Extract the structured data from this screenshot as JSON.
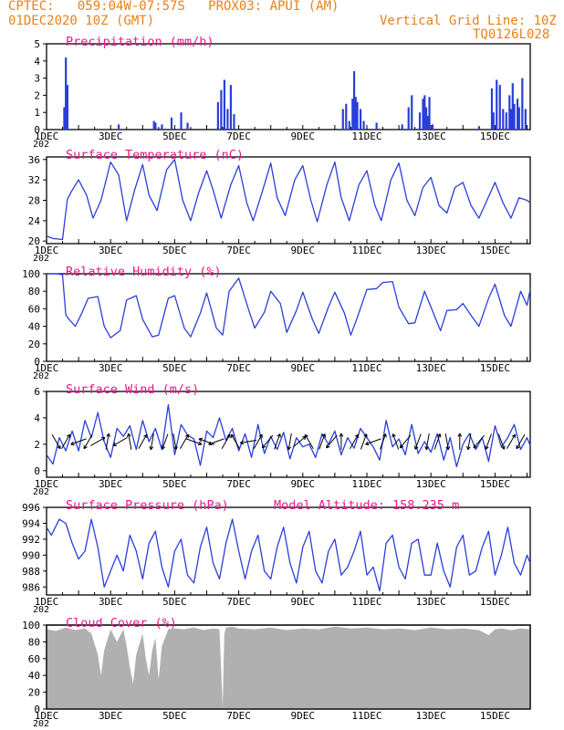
{
  "header": {
    "line1_left": "CPTEC:   059:04W-07:57S   PROX03: APUI (AM)",
    "line2_left": "01DEC2020 10Z (GMT)",
    "line2_right": "Vertical Grid Line: 10Z",
    "line3_right": "TQ0126L028"
  },
  "colors": {
    "header": "#e8801a",
    "title": "#e8188a",
    "series": "#2a3fd8",
    "cloud": "#b0b0b0",
    "axis": "#000000"
  },
  "x_axis": {
    "start_day": 1,
    "end_day": 16.1,
    "tick_labels": [
      "1DEC",
      "3DEC",
      "5DEC",
      "7DEC",
      "9DEC",
      "11DEC",
      "13DEC",
      "15DEC"
    ],
    "tick_days": [
      1,
      3,
      5,
      7,
      9,
      11,
      13,
      15
    ],
    "year_label": "202"
  },
  "chart_data": [
    {
      "type": "bar",
      "title": "Precipitation (mm/h)",
      "ylim": [
        0,
        5
      ],
      "yticks": [
        "0",
        "1",
        "2",
        "3",
        "4",
        "5"
      ],
      "x": [
        1.55,
        1.6,
        1.65,
        3.25,
        4.35,
        4.4,
        4.6,
        4.9,
        5.2,
        5.4,
        6.35,
        6.45,
        6.55,
        6.65,
        6.75,
        6.85,
        10.25,
        10.35,
        10.45,
        10.55,
        10.6,
        10.65,
        10.7,
        10.8,
        10.9,
        11.3,
        12.1,
        12.3,
        12.4,
        12.65,
        12.75,
        12.8,
        12.85,
        12.9,
        12.95,
        13.05,
        14.5,
        14.9,
        14.95,
        15.05,
        15.15,
        15.25,
        15.35,
        15.45,
        15.5,
        15.55,
        15.6,
        15.7,
        15.75,
        15.85,
        15.95
      ],
      "values": [
        1.3,
        4.2,
        2.6,
        0.3,
        0.5,
        0.4,
        0.3,
        0.7,
        1.0,
        0.4,
        1.6,
        2.3,
        2.9,
        1.2,
        2.6,
        0.9,
        1.2,
        1.5,
        0.5,
        1.8,
        3.4,
        1.9,
        1.6,
        1.2,
        0.5,
        0.4,
        0.3,
        1.3,
        2.0,
        1.0,
        1.8,
        2.0,
        1.3,
        0.8,
        1.9,
        0.3,
        0.2,
        2.4,
        1.0,
        2.9,
        2.6,
        1.2,
        1.0,
        2.0,
        1.2,
        2.7,
        1.5,
        1.8,
        1.3,
        3.0,
        1.2
      ]
    },
    {
      "type": "line",
      "title": "Surface Temperature (nC)",
      "ylim": [
        19.5,
        36.5
      ],
      "yticks": [
        "20",
        "24",
        "28",
        "32",
        "36"
      ],
      "x": [
        1.0,
        1.2,
        1.5,
        1.65,
        1.8,
        2.0,
        2.25,
        2.45,
        2.7,
        3.0,
        3.25,
        3.5,
        3.75,
        4.0,
        4.2,
        4.45,
        4.75,
        5.0,
        5.25,
        5.5,
        5.75,
        6.0,
        6.2,
        6.45,
        6.75,
        7.0,
        7.25,
        7.45,
        7.75,
        8.0,
        8.2,
        8.45,
        8.75,
        9.0,
        9.25,
        9.45,
        9.75,
        10.0,
        10.2,
        10.45,
        10.75,
        11.0,
        11.25,
        11.45,
        11.75,
        12.0,
        12.25,
        12.5,
        12.75,
        13.0,
        13.25,
        13.5,
        13.75,
        14.0,
        14.25,
        14.5,
        14.75,
        15.0,
        15.25,
        15.5,
        15.75,
        16.0,
        16.1
      ],
      "values": [
        21,
        20.5,
        20.3,
        28.2,
        30,
        32,
        29,
        24.5,
        28,
        35.5,
        33,
        24,
        30,
        35,
        29,
        26,
        34,
        36,
        28,
        24,
        29.5,
        33.8,
        30,
        24.5,
        31,
        34.8,
        27.5,
        24,
        30,
        35.3,
        28.5,
        25,
        32,
        34.8,
        28,
        23.8,
        31,
        35.5,
        28.5,
        24,
        31,
        33.8,
        27,
        24,
        32,
        35.3,
        28,
        25,
        30.5,
        32.5,
        27,
        25.5,
        30.5,
        31.5,
        27,
        24.5,
        28,
        31.5,
        27.5,
        24.5,
        28.5,
        28,
        27.5
      ]
    },
    {
      "type": "line",
      "title": "Relative Humidity (%)",
      "ylim": [
        0,
        100
      ],
      "yticks": [
        "0",
        "20",
        "40",
        "60",
        "80",
        "100"
      ],
      "x": [
        1.0,
        1.3,
        1.5,
        1.6,
        1.7,
        1.9,
        2.1,
        2.3,
        2.6,
        2.8,
        3.0,
        3.3,
        3.5,
        3.8,
        4.0,
        4.3,
        4.5,
        4.8,
        5.0,
        5.3,
        5.5,
        5.8,
        6.0,
        6.3,
        6.5,
        6.7,
        7.0,
        7.3,
        7.5,
        7.8,
        8.0,
        8.3,
        8.5,
        8.8,
        9.0,
        9.3,
        9.5,
        9.8,
        10.0,
        10.3,
        10.5,
        10.7,
        11.0,
        11.3,
        11.5,
        11.8,
        12.0,
        12.3,
        12.5,
        12.8,
        13.0,
        13.3,
        13.5,
        13.8,
        14.0,
        14.3,
        14.5,
        14.8,
        15.0,
        15.3,
        15.5,
        15.8,
        16.0,
        16.1
      ],
      "values": [
        100,
        100,
        99,
        53,
        48,
        40,
        55,
        72,
        74,
        40,
        27,
        35,
        70,
        75,
        48,
        28,
        30,
        72,
        75,
        38,
        28,
        55,
        78,
        38,
        30,
        80,
        95,
        60,
        38,
        56,
        80,
        66,
        33,
        58,
        79,
        48,
        32,
        62,
        79,
        55,
        30,
        50,
        82,
        83,
        90,
        91,
        62,
        43,
        44,
        80,
        62,
        35,
        58,
        59,
        66,
        50,
        40,
        72,
        88,
        52,
        40,
        80,
        64,
        82
      ]
    },
    {
      "type": "line",
      "title": "Surface Wind (m/s)",
      "ylim": [
        -0.5,
        6
      ],
      "yticks": [
        "0",
        "2",
        "4",
        "6"
      ],
      "x": [
        1.0,
        1.2,
        1.4,
        1.6,
        1.8,
        2.0,
        2.2,
        2.4,
        2.6,
        2.8,
        3.0,
        3.2,
        3.4,
        3.6,
        3.8,
        4.0,
        4.2,
        4.4,
        4.6,
        4.8,
        5.0,
        5.2,
        5.4,
        5.6,
        5.8,
        6.0,
        6.2,
        6.4,
        6.6,
        6.8,
        7.0,
        7.2,
        7.4,
        7.6,
        7.8,
        8.0,
        8.2,
        8.4,
        8.6,
        8.8,
        9.0,
        9.2,
        9.4,
        9.6,
        9.8,
        10.0,
        10.2,
        10.4,
        10.6,
        10.8,
        11.0,
        11.2,
        11.4,
        11.6,
        11.8,
        12.0,
        12.2,
        12.4,
        12.6,
        12.8,
        13.0,
        13.2,
        13.4,
        13.6,
        13.8,
        14.0,
        14.2,
        14.4,
        14.6,
        14.8,
        15.0,
        15.2,
        15.4,
        15.6,
        15.8,
        16.0,
        16.1
      ],
      "values": [
        1.2,
        0.5,
        2.5,
        1.5,
        3.0,
        1.5,
        3.8,
        2.5,
        4.4,
        2.2,
        1.0,
        3.2,
        2.6,
        3.4,
        1.6,
        3.8,
        2.2,
        3.2,
        1.6,
        5.0,
        1.2,
        3.5,
        2.7,
        2.4,
        0.4,
        3.0,
        2.5,
        4.0,
        2.3,
        3.2,
        1.5,
        2.8,
        1.0,
        3.5,
        1.3,
        2.6,
        1.6,
        2.9,
        0.9,
        2.5,
        1.8,
        2.0,
        1.0,
        2.8,
        2.0,
        3.0,
        1.2,
        2.5,
        1.7,
        3.2,
        2.5,
        1.8,
        0.8,
        3.8,
        1.8,
        2.4,
        1.2,
        3.5,
        1.3,
        2.2,
        1.4,
        2.8,
        0.8,
        2.5,
        0.3,
        2.0,
        2.8,
        1.6,
        2.5,
        0.7,
        3.4,
        1.8,
        2.5,
        3.5,
        1.6,
        2.5,
        1.9
      ]
    },
    {
      "type": "line",
      "title": "Surface Pressure (hPa)",
      "subtitle": "Model Altitude: 158.235 m",
      "ylim": [
        985,
        996
      ],
      "yticks": [
        "986",
        "988",
        "990",
        "992",
        "994",
        "996"
      ],
      "x": [
        1.0,
        1.15,
        1.4,
        1.6,
        1.8,
        2.0,
        2.2,
        2.4,
        2.6,
        2.8,
        3.0,
        3.2,
        3.4,
        3.6,
        3.8,
        4.0,
        4.2,
        4.4,
        4.6,
        4.8,
        5.0,
        5.2,
        5.4,
        5.6,
        5.8,
        6.0,
        6.2,
        6.4,
        6.6,
        6.8,
        7.0,
        7.2,
        7.4,
        7.6,
        7.8,
        8.0,
        8.2,
        8.4,
        8.6,
        8.8,
        9.0,
        9.2,
        9.4,
        9.6,
        9.8,
        10.0,
        10.2,
        10.4,
        10.6,
        10.8,
        11.0,
        11.2,
        11.4,
        11.6,
        11.8,
        12.0,
        12.2,
        12.4,
        12.6,
        12.8,
        13.0,
        13.2,
        13.4,
        13.6,
        13.8,
        14.0,
        14.2,
        14.4,
        14.6,
        14.8,
        15.0,
        15.2,
        15.4,
        15.6,
        15.8,
        16.0,
        16.1
      ],
      "values": [
        993.5,
        992.5,
        994.5,
        994.0,
        991.5,
        989.5,
        990.5,
        994.5,
        991.0,
        986.0,
        988.0,
        990.0,
        988.0,
        992.5,
        990.5,
        987.0,
        991.5,
        993.0,
        988.5,
        986.0,
        990.5,
        992.0,
        987.5,
        986.5,
        991.0,
        993.5,
        989.0,
        987.0,
        991.5,
        994.5,
        990.5,
        987.0,
        990.5,
        992.5,
        988.0,
        987.0,
        991.0,
        993.5,
        989.0,
        986.5,
        991.0,
        993.0,
        988.0,
        986.5,
        990.5,
        992.0,
        987.5,
        988.5,
        990.5,
        993.0,
        987.5,
        988.5,
        985.5,
        991.5,
        992.5,
        988.5,
        987.0,
        991.5,
        992.0,
        987.5,
        987.5,
        991.5,
        988.0,
        986.0,
        991.0,
        992.5,
        987.5,
        988.0,
        991.0,
        993.0,
        987.5,
        990.0,
        993.5,
        989.0,
        987.5,
        990.0,
        989.0
      ]
    },
    {
      "type": "area",
      "title": "Cloud Cover (%)",
      "ylim": [
        0,
        100
      ],
      "yticks": [
        "0",
        "20",
        "40",
        "60",
        "80",
        "100"
      ],
      "x": [
        1.0,
        1.3,
        1.6,
        1.9,
        2.2,
        2.4,
        2.6,
        2.7,
        2.8,
        3.0,
        3.2,
        3.4,
        3.5,
        3.6,
        3.7,
        3.8,
        4.0,
        4.1,
        4.2,
        4.3,
        4.4,
        4.5,
        4.6,
        4.8,
        5.0,
        5.3,
        5.6,
        5.9,
        6.2,
        6.4,
        6.5,
        6.55,
        6.6,
        6.8,
        7.0,
        7.5,
        8.0,
        8.5,
        9.0,
        9.5,
        10.0,
        10.5,
        11.0,
        11.5,
        12.0,
        12.5,
        13.0,
        13.5,
        14.0,
        14.5,
        14.8,
        15.0,
        15.2,
        15.5,
        15.8,
        16.1
      ],
      "values": [
        95,
        93,
        97,
        94,
        96,
        90,
        65,
        40,
        70,
        95,
        80,
        95,
        75,
        50,
        30,
        65,
        90,
        60,
        40,
        70,
        85,
        35,
        75,
        95,
        96,
        95,
        97,
        94,
        96,
        95,
        3,
        90,
        97,
        98,
        96,
        95,
        97,
        94,
        96,
        95,
        98,
        96,
        97,
        95,
        96,
        94,
        97,
        95,
        96,
        94,
        88,
        95,
        96,
        94,
        96,
        95
      ]
    }
  ],
  "wind_arrows": {
    "x": [
      1.3,
      1.6,
      2.0,
      2.3,
      2.6,
      2.9,
      3.3,
      3.6,
      4.0,
      4.3,
      4.7,
      5.0,
      5.3,
      5.6,
      6.0,
      6.3,
      6.6,
      6.9,
      7.3,
      7.6,
      7.9,
      8.2,
      8.6,
      8.9,
      9.2,
      9.6,
      9.9,
      10.2,
      10.6,
      10.9,
      11.2,
      11.5,
      11.9,
      12.2,
      12.6,
      12.9,
      13.2,
      13.5,
      13.9,
      14.2,
      14.5,
      14.8,
      15.2,
      15.5,
      15.8
    ],
    "dir_deg": [
      300,
      60,
      200,
      240,
      30,
      80,
      210,
      100,
      60,
      260,
      250,
      280,
      60,
      340,
      160,
      200,
      60,
      120,
      190,
      60,
      230,
      70,
      260,
      40,
      120,
      70,
      230,
      90,
      60,
      70,
      200,
      70,
      110,
      230,
      250,
      260,
      70,
      280,
      90,
      260,
      230,
      250,
      290,
      60,
      240
    ]
  },
  "cloud_ticks": [
    "0",
    "20",
    "40",
    "60",
    "80",
    "100"
  ]
}
